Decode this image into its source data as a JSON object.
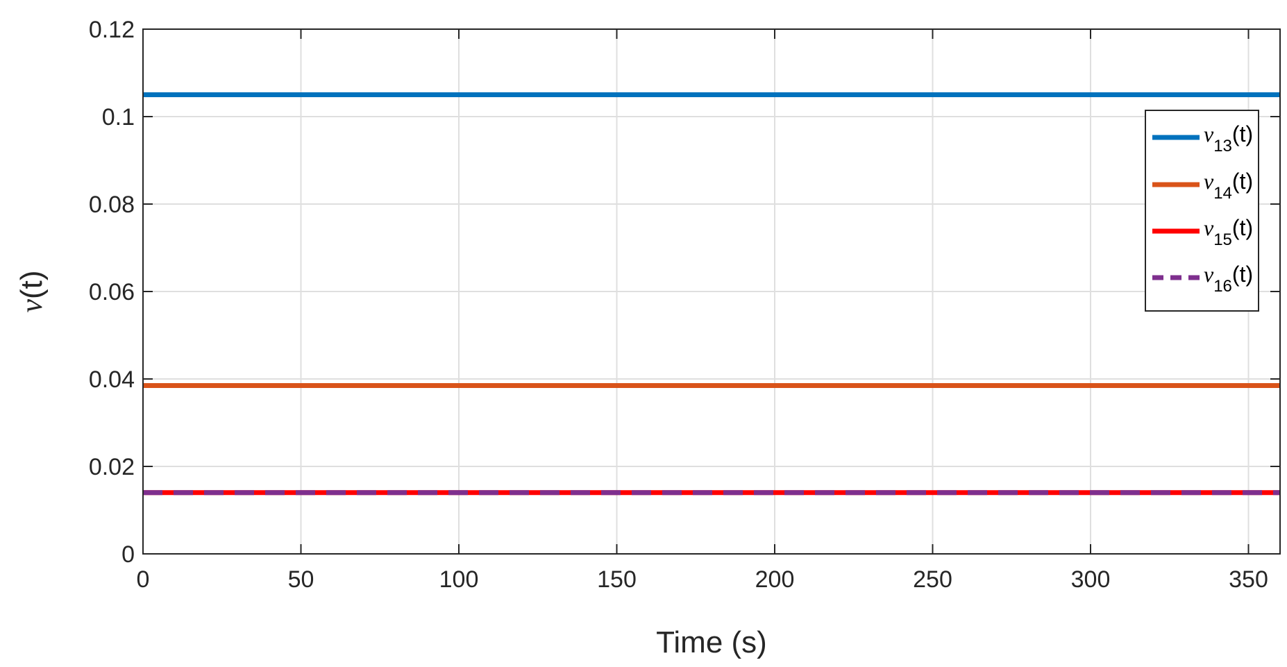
{
  "chart_data": {
    "type": "line",
    "xlabel": "Time (s)",
    "ylabel": {
      "symbol": "ν",
      "rest": "(t)"
    },
    "xlim": [
      0,
      360
    ],
    "ylim": [
      0,
      0.12
    ],
    "xticks": [
      0,
      50,
      100,
      150,
      200,
      250,
      300,
      350
    ],
    "yticks": [
      0,
      0.02,
      0.04,
      0.06,
      0.08,
      0.1,
      0.12
    ],
    "xtick_labels": [
      "0",
      "50",
      "100",
      "150",
      "200",
      "250",
      "300",
      "350"
    ],
    "ytick_labels": [
      "0",
      "0.02",
      "0.04",
      "0.06",
      "0.08",
      "0.1",
      "0.12"
    ],
    "grid": true,
    "legend_position": "top-right",
    "series": [
      {
        "name": {
          "symbol": "ν",
          "sub": "13",
          "rest": "(t)"
        },
        "color": "#0072BD",
        "dash": "solid",
        "x": [
          0,
          360
        ],
        "values": [
          0.105,
          0.105
        ]
      },
      {
        "name": {
          "symbol": "ν",
          "sub": "14",
          "rest": "(t)"
        },
        "color": "#D95319",
        "dash": "solid",
        "x": [
          0,
          360
        ],
        "values": [
          0.0385,
          0.0385
        ]
      },
      {
        "name": {
          "symbol": "ν",
          "sub": "15",
          "rest": "(t)"
        },
        "color": "#FF0000",
        "dash": "solid",
        "x": [
          0,
          360
        ],
        "values": [
          0.014,
          0.014
        ]
      },
      {
        "name": {
          "symbol": "ν",
          "sub": "16",
          "rest": "(t)"
        },
        "color": "#7E2F8E",
        "dash": "dashed",
        "x": [
          0,
          360
        ],
        "values": [
          0.014,
          0.014
        ]
      }
    ]
  }
}
